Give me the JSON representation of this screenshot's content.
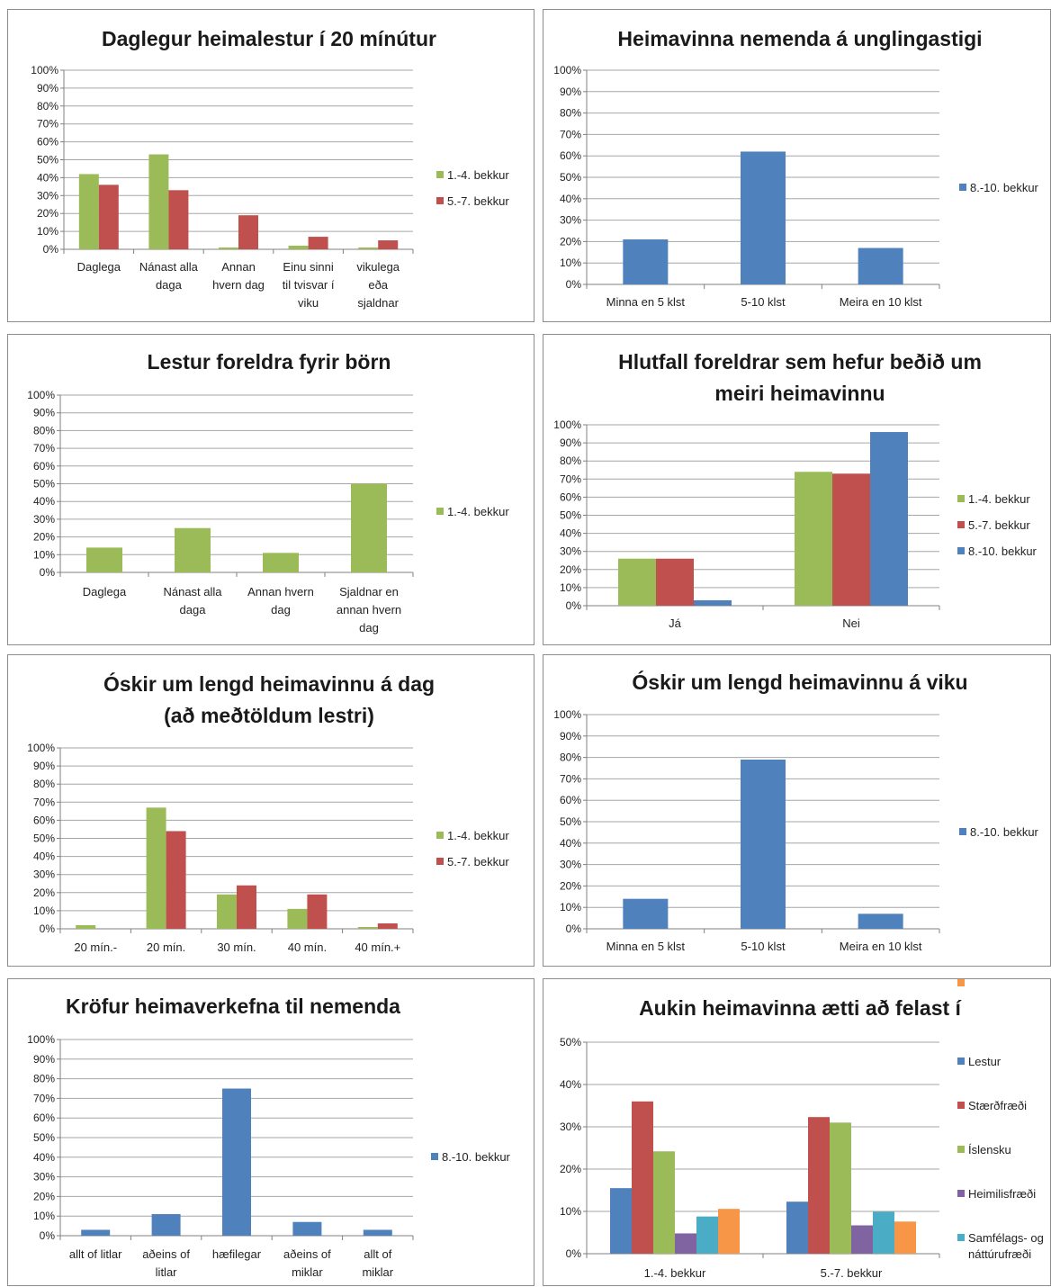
{
  "colors": {
    "green": "#9bbb59",
    "red": "#c0504d",
    "blue": "#4f81bd",
    "purple": "#8064a2",
    "teal": "#4bacc6",
    "orange": "#f79646"
  },
  "chart_data": [
    {
      "type": "bar",
      "title": [
        "Daglegur heimalestur í 20 mínútur"
      ],
      "ylim": [
        0,
        100
      ],
      "yticks": [
        0,
        10,
        20,
        30,
        40,
        50,
        60,
        70,
        80,
        90,
        100
      ],
      "categories": [
        [
          "Daglega"
        ],
        [
          "Nánast alla",
          "daga"
        ],
        [
          "Annan",
          "hvern dag"
        ],
        [
          "Einu sinni",
          "til tvisvar í",
          "viku"
        ],
        [
          "vikulega",
          "eða",
          "sjaldnar"
        ]
      ],
      "series": [
        {
          "name": "1.-4. bekkur",
          "color": "green",
          "values": [
            42,
            53,
            1,
            2,
            1
          ]
        },
        {
          "name": "5.-7. bekkur",
          "color": "red",
          "values": [
            36,
            33,
            19,
            7,
            5
          ]
        }
      ]
    },
    {
      "type": "bar",
      "title": [
        "Heimavinna nemenda á unglingastigi"
      ],
      "ylim": [
        0,
        100
      ],
      "yticks": [
        0,
        10,
        20,
        30,
        40,
        50,
        60,
        70,
        80,
        90,
        100
      ],
      "categories": [
        [
          "Minna en 5 klst"
        ],
        [
          "5-10 klst"
        ],
        [
          "Meira en 10 klst"
        ]
      ],
      "series": [
        {
          "name": "8.-10. bekkur",
          "color": "blue",
          "values": [
            21,
            62,
            17
          ]
        }
      ]
    },
    {
      "type": "bar",
      "title": [
        "Lestur foreldra fyrir börn"
      ],
      "ylim": [
        0,
        100
      ],
      "yticks": [
        0,
        10,
        20,
        30,
        40,
        50,
        60,
        70,
        80,
        90,
        100
      ],
      "categories": [
        [
          "Daglega"
        ],
        [
          "Nánast alla",
          "daga"
        ],
        [
          "Annan hvern",
          "dag"
        ],
        [
          "Sjaldnar en",
          "annan hvern",
          "dag"
        ]
      ],
      "series": [
        {
          "name": "1.-4. bekkur",
          "color": "green",
          "values": [
            14,
            25,
            11,
            50
          ]
        }
      ]
    },
    {
      "type": "bar",
      "title": [
        "Hlutfall foreldrar sem hefur beðið um",
        "meiri heimavinnu"
      ],
      "ylim": [
        0,
        100
      ],
      "yticks": [
        0,
        10,
        20,
        30,
        40,
        50,
        60,
        70,
        80,
        90,
        100
      ],
      "categories": [
        [
          "Já"
        ],
        [
          "Nei"
        ]
      ],
      "series": [
        {
          "name": "1.-4. bekkur",
          "color": "green",
          "values": [
            26,
            74
          ]
        },
        {
          "name": "5.-7. bekkur",
          "color": "red",
          "values": [
            26,
            73
          ]
        },
        {
          "name": "8.-10. bekkur",
          "color": "blue",
          "values": [
            3,
            96
          ]
        }
      ]
    },
    {
      "type": "bar",
      "title": [
        "Óskir um lengd heimavinnu á dag",
        "(að meðtöldum lestri)"
      ],
      "ylim": [
        0,
        100
      ],
      "yticks": [
        0,
        10,
        20,
        30,
        40,
        50,
        60,
        70,
        80,
        90,
        100
      ],
      "categories": [
        [
          "20 mín.-"
        ],
        [
          "20 mín."
        ],
        [
          "30 mín."
        ],
        [
          "40 mín."
        ],
        [
          "40 mín.+"
        ]
      ],
      "series": [
        {
          "name": "1.-4. bekkur",
          "color": "green",
          "values": [
            2,
            67,
            19,
            11,
            1
          ]
        },
        {
          "name": "5.-7. bekkur",
          "color": "red",
          "values": [
            0,
            54,
            24,
            19,
            3
          ]
        }
      ]
    },
    {
      "type": "bar",
      "title": [
        "Óskir um lengd heimavinnu á viku"
      ],
      "ylim": [
        0,
        100
      ],
      "yticks": [
        0,
        10,
        20,
        30,
        40,
        50,
        60,
        70,
        80,
        90,
        100
      ],
      "categories": [
        [
          "Minna en 5 klst"
        ],
        [
          "5-10 klst"
        ],
        [
          "Meira en 10 klst"
        ]
      ],
      "series": [
        {
          "name": "8.-10. bekkur",
          "color": "blue",
          "values": [
            14,
            79,
            7
          ]
        }
      ]
    },
    {
      "type": "bar",
      "title": [
        "Kröfur heimaverkefna til nemenda"
      ],
      "ylim": [
        0,
        100
      ],
      "yticks": [
        0,
        10,
        20,
        30,
        40,
        50,
        60,
        70,
        80,
        90,
        100
      ],
      "categories": [
        [
          "allt of litlar"
        ],
        [
          "aðeins of",
          "litlar"
        ],
        [
          "hæfilegar"
        ],
        [
          "aðeins of",
          "miklar"
        ],
        [
          "allt of",
          "miklar"
        ]
      ],
      "series": [
        {
          "name": "8.-10. bekkur",
          "color": "blue",
          "values": [
            3,
            11,
            75,
            7,
            3
          ]
        }
      ]
    },
    {
      "type": "bar",
      "title": [
        "Aukin heimavinna ætti að felast í"
      ],
      "ylim": [
        0,
        50
      ],
      "yticks": [
        0,
        10,
        20,
        30,
        40,
        50
      ],
      "categories": [
        [
          "1.-4. bekkur"
        ],
        [
          "5.-7. bekkur"
        ]
      ],
      "series": [
        {
          "name": [
            "Lestur"
          ],
          "color": "blue",
          "values": [
            15.5,
            12.3
          ]
        },
        {
          "name": [
            "Stærðfræði"
          ],
          "color": "red",
          "values": [
            36,
            32.3
          ]
        },
        {
          "name": [
            "Íslensku"
          ],
          "color": "green",
          "values": [
            24.2,
            31
          ]
        },
        {
          "name": [
            "Heimilisfræði"
          ],
          "color": "purple",
          "values": [
            4.8,
            6.7
          ]
        },
        {
          "name": [
            "Samfélags- og",
            "náttúrufræði"
          ],
          "color": "teal",
          "values": [
            8.8,
            9.9
          ]
        },
        {
          "name": [
            ""
          ],
          "color": "orange",
          "values": [
            10.6,
            7.6
          ]
        }
      ]
    }
  ]
}
